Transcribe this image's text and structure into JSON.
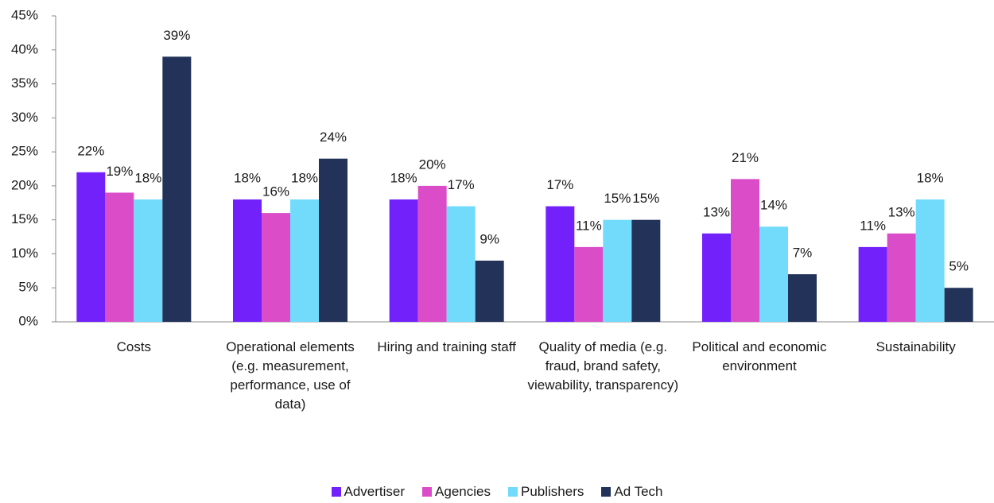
{
  "chart_data": {
    "type": "bar",
    "categories": [
      "Costs",
      "Operational elements (e.g. measurement, performance, use of data)",
      "Hiring and training staff",
      "Quality of media (e.g. fraud, brand safety, viewability, transparency)",
      "Political and economic environment",
      "Sustainability"
    ],
    "series": [
      {
        "name": "Advertiser",
        "color": "#7321fb",
        "values": [
          22,
          18,
          18,
          17,
          13,
          11
        ],
        "value_labels": [
          "22%",
          "18%",
          "18%",
          "17%",
          "13%",
          "11%"
        ]
      },
      {
        "name": "Agencies",
        "color": "#db4dc8",
        "values": [
          19,
          16,
          20,
          11,
          21,
          13
        ],
        "value_labels": [
          "19%",
          "16%",
          "20%",
          "11%",
          "21%",
          "13%"
        ]
      },
      {
        "name": "Publishers",
        "color": "#72dbfb",
        "values": [
          18,
          18,
          17,
          15,
          14,
          18
        ],
        "value_labels": [
          "18%",
          "18%",
          "17%",
          "15%",
          "14%",
          "18%"
        ]
      },
      {
        "name": "Ad Tech",
        "color": "#223259",
        "values": [
          39,
          24,
          9,
          15,
          7,
          5
        ],
        "value_labels": [
          "39%",
          "24%",
          "9%",
          "15%",
          "7%",
          "5%"
        ]
      }
    ],
    "ylim": [
      0,
      45
    ],
    "yticks": [
      {
        "value": 0,
        "label": "0%"
      },
      {
        "value": 5,
        "label": "5%"
      },
      {
        "value": 10,
        "label": "10%"
      },
      {
        "value": 15,
        "label": "15%"
      },
      {
        "value": 20,
        "label": "20%"
      },
      {
        "value": 25,
        "label": "25%"
      },
      {
        "value": 30,
        "label": "30%"
      },
      {
        "value": 35,
        "label": "35%"
      },
      {
        "value": 40,
        "label": "40%"
      },
      {
        "value": 45,
        "label": "45%"
      }
    ],
    "grid": false,
    "legend": "bottom"
  }
}
